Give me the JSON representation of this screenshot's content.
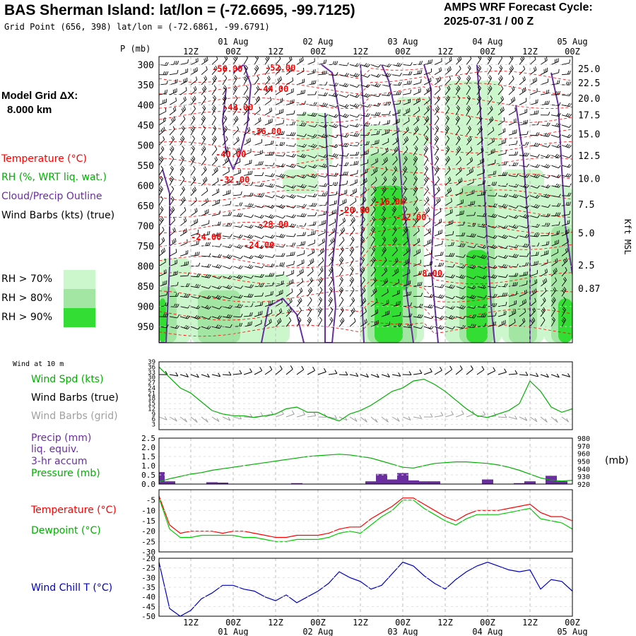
{
  "header": {
    "title": "BAS Sherman Island:  lat/lon = (-72.6695, -99.7125)",
    "grid_point": "Grid Point (656, 398) lat/lon = (-72.6861, -99.6791)",
    "cycle_line1": "AMPS WRF Forecast Cycle:",
    "cycle_line2": "2025-07-31 / 00  Z"
  },
  "colors": {
    "temperature": "#ff0000",
    "rh": "#00b000",
    "cloud": "#6a2ea0",
    "dewpoint": "#00cc00",
    "windchill": "#0000c0",
    "grid_barbs": "#a0a0a0",
    "rh70": "#ccf7cc",
    "rh80": "#a3e6a3",
    "rh90": "#33dd33"
  },
  "left_legend": {
    "model_grid": "Model Grid ΔX:",
    "model_grid_value": "8.000 km",
    "temperature": "Temperature (°C)",
    "rh": "RH (%, WRT liq. wat.)",
    "cloud": "Cloud/Precip Outline",
    "wind_barbs": "Wind Barbs (kts) (true)",
    "rh70": "RH > 70%",
    "rh80": "RH > 80%",
    "rh90": "RH > 90%"
  },
  "time_axis": {
    "hour_labels": [
      "12Z",
      "00Z",
      "12Z",
      "00Z",
      "12Z",
      "00Z",
      "12Z",
      "00Z",
      "12Z",
      "00Z"
    ],
    "hour_positions": [
      12,
      24,
      36,
      48,
      60,
      72,
      84,
      96,
      108,
      120
    ],
    "date_labels": [
      "01 Aug",
      "02 Aug",
      "03 Aug",
      "04 Aug",
      "05 Aug"
    ],
    "date_positions": [
      24,
      48,
      72,
      96,
      120
    ],
    "range_hours": [
      3,
      120
    ]
  },
  "profile": {
    "p_axis_label": "P (mb)",
    "pressure_ticks": [
      300,
      350,
      400,
      450,
      500,
      550,
      600,
      650,
      700,
      750,
      800,
      850,
      900,
      950
    ],
    "height_axis_label": "Kft MSL",
    "height_ticks": [
      {
        "label": "25.0",
        "p": 310
      },
      {
        "label": "22.5",
        "p": 345
      },
      {
        "label": "20.0",
        "p": 383
      },
      {
        "label": "17.5",
        "p": 425
      },
      {
        "label": "15.0",
        "p": 472
      },
      {
        "label": "12.5",
        "p": 525
      },
      {
        "label": "10.0",
        "p": 582
      },
      {
        "label": "7.5",
        "p": 646
      },
      {
        "label": "5.0",
        "p": 717
      },
      {
        "label": "2.5",
        "p": 797
      },
      {
        "label": "0.87",
        "p": 855
      }
    ],
    "temp_labels": [
      {
        "text": "-56.00",
        "t": 18,
        "p": 318
      },
      {
        "text": "-52.00",
        "t": 33,
        "p": 315
      },
      {
        "text": "-44.00",
        "t": 31,
        "p": 368
      },
      {
        "text": "-48.00",
        "t": 21,
        "p": 413
      },
      {
        "text": "-36.00",
        "t": 29,
        "p": 473
      },
      {
        "text": "-40.00",
        "t": 19,
        "p": 530
      },
      {
        "text": "-32.00",
        "t": 20,
        "p": 593
      },
      {
        "text": "-16.00",
        "t": 64,
        "p": 647
      },
      {
        "text": "-20.00",
        "t": 54,
        "p": 668
      },
      {
        "text": "-12.00",
        "t": 70,
        "p": 686
      },
      {
        "text": "-28.00",
        "t": 31,
        "p": 703
      },
      {
        "text": "-24.00",
        "t": 12,
        "p": 735
      },
      {
        "text": "-24.00",
        "t": 27,
        "p": 755
      },
      {
        "text": "-8.00",
        "t": 76,
        "p": 825
      }
    ]
  },
  "panels": {
    "wind10m": {
      "title": "Wind at 10 m",
      "label_spd": "Wind Spd (kts)",
      "label_barbs_true": "Wind Barbs (true)",
      "label_barbs_grid": "Wind Barbs (grid)",
      "yticks": [
        3,
        6,
        9,
        12,
        15,
        18,
        21,
        24,
        27,
        30,
        33,
        36,
        39
      ]
    },
    "precip": {
      "label1": "Precip (mm)",
      "label2": "liq. equiv.",
      "label3": "3-hr accum",
      "label4": "Pressure (mb)",
      "right_unit": "(mb)",
      "yticks": [
        "0.0",
        "0.5",
        "1.0",
        "1.5",
        "2.0",
        "2.5"
      ],
      "right_ticks": [
        920,
        930,
        940,
        950,
        960,
        970,
        980
      ]
    },
    "temp": {
      "label_temp": "Temperature (°C)",
      "label_dew": "Dewpoint (°C)",
      "yticks": [
        -30,
        -25,
        -20,
        -15,
        -10,
        -5
      ]
    },
    "windchill": {
      "label": "Wind Chill T (°C)",
      "yticks": [
        -50,
        -45,
        -40,
        -35,
        -30,
        -25,
        -20
      ]
    }
  },
  "chart_data": [
    {
      "type": "line",
      "title": "Wind at 10 m",
      "ylabel": "Wind Spd (kts)",
      "ylim": [
        0,
        39
      ],
      "x": [
        3,
        6,
        9,
        12,
        15,
        18,
        21,
        24,
        27,
        30,
        33,
        36,
        39,
        42,
        45,
        48,
        51,
        54,
        57,
        60,
        63,
        66,
        69,
        72,
        75,
        78,
        81,
        84,
        87,
        90,
        93,
        96,
        99,
        102,
        105,
        108,
        111,
        114,
        117,
        120
      ],
      "series": [
        {
          "name": "Wind Spd (kts)",
          "values": [
            36,
            30,
            24,
            21,
            16,
            11,
            9,
            8,
            8,
            7,
            8,
            9,
            12,
            13,
            10,
            10,
            7,
            5,
            9,
            11,
            14,
            18,
            22,
            24,
            28,
            29,
            26,
            22,
            17,
            12,
            8,
            7,
            9,
            11,
            15,
            28,
            22,
            13,
            10,
            12
          ]
        }
      ]
    },
    {
      "type": "bar",
      "title": "Precip / Pressure",
      "ylabel": "Precip (mm)",
      "ylim": [
        0,
        2.5
      ],
      "x": [
        3,
        6,
        9,
        12,
        15,
        18,
        21,
        24,
        27,
        30,
        33,
        36,
        39,
        42,
        45,
        48,
        51,
        54,
        57,
        60,
        63,
        66,
        69,
        72,
        75,
        78,
        81,
        84,
        87,
        90,
        93,
        96,
        99,
        102,
        105,
        108,
        111,
        114,
        117,
        120
      ],
      "series": [
        {
          "name": "Precip (mm)",
          "values": [
            0.65,
            0.15,
            0,
            0,
            0,
            0.1,
            0.08,
            0,
            0,
            0,
            0,
            0,
            0,
            0.05,
            0,
            0,
            0,
            0,
            0,
            0,
            0.15,
            0.55,
            0.25,
            0.6,
            0.2,
            0.15,
            0.15,
            0,
            0,
            0,
            0,
            0.25,
            0,
            0,
            0.05,
            0.15,
            0,
            0.45,
            0.15,
            0
          ]
        },
        {
          "name": "Pressure (mb)",
          "ylim": [
            920,
            980
          ],
          "values": [
            923,
            927,
            930,
            933,
            935,
            938,
            940,
            942,
            944,
            946,
            948,
            950,
            952,
            954,
            956,
            957,
            958,
            959,
            958,
            956,
            954,
            950,
            946,
            942,
            941,
            944,
            947,
            948,
            949,
            949,
            948,
            947,
            945,
            942,
            938,
            933,
            928,
            925,
            924,
            925
          ]
        }
      ]
    },
    {
      "type": "line",
      "title": "Temperature / Dewpoint",
      "ylim": [
        -30,
        0
      ],
      "x": [
        3,
        6,
        9,
        12,
        15,
        18,
        21,
        24,
        27,
        30,
        33,
        36,
        39,
        42,
        45,
        48,
        51,
        54,
        57,
        60,
        63,
        66,
        69,
        72,
        75,
        78,
        81,
        84,
        87,
        90,
        93,
        96,
        99,
        102,
        105,
        108,
        111,
        114,
        117,
        120
      ],
      "series": [
        {
          "name": "Temperature (°C)",
          "values": [
            -3,
            -17,
            -21,
            -20,
            -20,
            -20,
            -21,
            -20,
            -20,
            -21,
            -22,
            -23,
            -23,
            -22,
            -22,
            -22,
            -21,
            -19,
            -18,
            -18,
            -14,
            -11,
            -8,
            -4,
            -4,
            -7,
            -10,
            -13,
            -15,
            -12,
            -10,
            -10,
            -10,
            -9,
            -8,
            -7,
            -11,
            -13,
            -13,
            -15
          ]
        },
        {
          "name": "Dewpoint (°C)",
          "values": [
            -4,
            -19,
            -23,
            -23,
            -22,
            -22,
            -22,
            -22,
            -23,
            -23,
            -24,
            -25,
            -25,
            -24,
            -24,
            -24,
            -23,
            -21,
            -20,
            -21,
            -17,
            -13,
            -10,
            -5,
            -5,
            -9,
            -12,
            -15,
            -17,
            -14,
            -12,
            -12,
            -12,
            -11,
            -10,
            -9,
            -14,
            -15,
            -16,
            -19
          ]
        }
      ]
    },
    {
      "type": "line",
      "title": "Wind Chill T",
      "ylim": [
        -50,
        -20
      ],
      "x": [
        3,
        6,
        9,
        12,
        15,
        18,
        21,
        24,
        27,
        30,
        33,
        36,
        39,
        42,
        45,
        48,
        51,
        54,
        57,
        60,
        63,
        66,
        69,
        72,
        75,
        78,
        81,
        84,
        87,
        90,
        93,
        96,
        99,
        102,
        105,
        108,
        111,
        114,
        117,
        120
      ],
      "series": [
        {
          "name": "Wind Chill T (°C)",
          "values": [
            -22,
            -46,
            -50,
            -47,
            -41,
            -38,
            -34,
            -34,
            -36,
            -37,
            -40,
            -42,
            -39,
            -43,
            -40,
            -37,
            -33,
            -27,
            -30,
            -32,
            -36,
            -34,
            -28,
            -22,
            -24,
            -29,
            -33,
            -36,
            -31,
            -27,
            -24,
            -22,
            -24,
            -26,
            -27,
            -26,
            -36,
            -31,
            -32,
            -37
          ]
        }
      ]
    }
  ]
}
